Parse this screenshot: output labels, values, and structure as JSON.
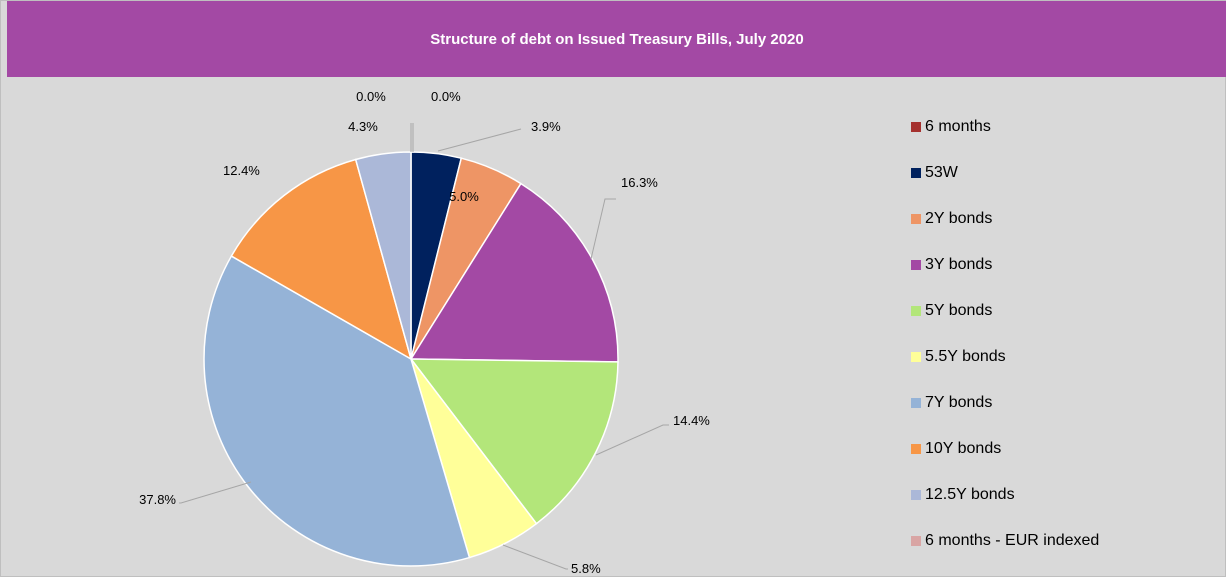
{
  "chart_data": {
    "type": "pie",
    "title": "Structure of debt on Issued Treasury Bills, July 2020",
    "categories": [
      "6 months",
      "53W",
      "2Y bonds",
      "3Y bonds",
      "5Y bonds",
      "5.5Y bonds",
      "7Y bonds",
      "10Y bonds",
      "12.5Y bonds",
      "6 months - EUR indexed"
    ],
    "values": [
      0.0,
      3.9,
      5.0,
      16.3,
      14.4,
      5.8,
      37.8,
      12.4,
      4.3,
      0.0
    ],
    "labels": [
      "0.0%",
      "3.9%",
      "5.0%",
      "16.3%",
      "14.4%",
      "5.8%",
      "37.8%",
      "12.4%",
      "4.3%",
      "0.0%"
    ],
    "colors": [
      "#a5312f",
      "#00215e",
      "#ee9565",
      "#a349a4",
      "#b3e67a",
      "#ffff99",
      "#95b3d7",
      "#f79646",
      "#abb8d8",
      "#d9a5a4"
    ],
    "legend_position": "right",
    "start_angle": "top, clockwise",
    "header_color": "#a349a4",
    "plot_background": "#d9d9d9"
  }
}
